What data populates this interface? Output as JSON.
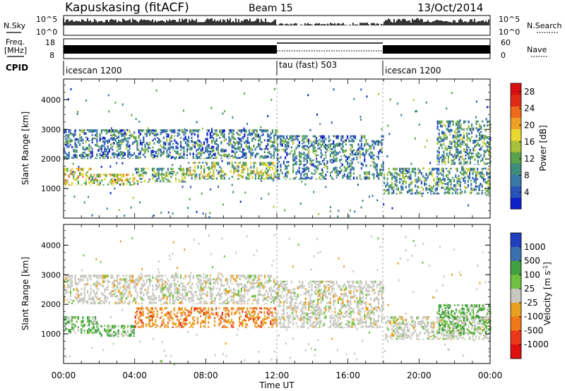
{
  "header": {
    "station": "Kapuskasing (fitACF)",
    "beam": "Beam 15",
    "date": "13/Oct/2014"
  },
  "panels": {
    "nsky": {
      "label": "N.Sky",
      "ticks": [
        "10^5",
        "10^0"
      ]
    },
    "nsearch": {
      "label": "N.Search",
      "ticks": [
        "10^5",
        "10^0"
      ]
    },
    "freq": {
      "label_line1": "Freq.",
      "label_line2": "[MHz]",
      "ticks": [
        "18",
        "8"
      ]
    },
    "nave": {
      "label": "Nave",
      "ticks": [
        "60",
        "0"
      ]
    },
    "cpid": {
      "label": "CPID",
      "segments": [
        {
          "name": "icescan 1200",
          "start": "00:00",
          "end": "12:00"
        },
        {
          "name": "tau (fast) 503",
          "start": "12:00",
          "end": "18:00"
        },
        {
          "name": "icescan 1200",
          "start": "18:00",
          "end": "24:00"
        }
      ]
    }
  },
  "chart_data": [
    {
      "type": "heatmap",
      "title": "Power",
      "ylabel": "Slant Range [km]",
      "xlabel": "Time UT",
      "y_ticks": [
        "1000",
        "2000",
        "3000",
        "4000"
      ],
      "ylim": [
        0,
        4700
      ],
      "x_ticks": [
        "00:00",
        "04:00",
        "08:00",
        "12:00",
        "16:00",
        "20:00",
        "00:00"
      ],
      "xlim_hours": [
        0,
        24
      ],
      "colorbar": {
        "label": "Power [dB]",
        "ticks": [
          "4",
          "8",
          "12",
          "16",
          "20",
          "24",
          "28"
        ],
        "range": [
          0,
          30
        ],
        "colors": [
          "#1020c8",
          "#2a55b8",
          "#3a78a8",
          "#3e8c7a",
          "#5aa24c",
          "#a8c23a",
          "#e8d830",
          "#f0a028",
          "#ee6a1c",
          "#e02a18",
          "#d81010"
        ]
      },
      "echo_bands": [
        {
          "start_h": 0,
          "end_h": 1.5,
          "range_low": 1100,
          "range_high": 1700,
          "level": 18
        },
        {
          "start_h": 1.5,
          "end_h": 4,
          "range_low": 1100,
          "range_high": 1500,
          "level": 16
        },
        {
          "start_h": 4,
          "end_h": 7,
          "range_low": 1200,
          "range_high": 1700,
          "level": 12
        },
        {
          "start_h": 7,
          "end_h": 12,
          "range_low": 1300,
          "range_high": 1900,
          "level": 14
        },
        {
          "start_h": 0,
          "end_h": 12,
          "range_low": 2000,
          "range_high": 3000,
          "level": 8
        },
        {
          "start_h": 12,
          "end_h": 18,
          "range_low": 1300,
          "range_high": 2800,
          "level": 8
        },
        {
          "start_h": 18,
          "end_h": 24,
          "range_low": 800,
          "range_high": 1700,
          "level": 10
        },
        {
          "start_h": 21,
          "end_h": 24,
          "range_low": 1800,
          "range_high": 3300,
          "level": 10
        }
      ]
    },
    {
      "type": "heatmap",
      "title": "Velocity",
      "ylabel": "Slant Range [km]",
      "xlabel": "Time UT",
      "y_ticks": [
        "1000",
        "2000",
        "3000",
        "4000"
      ],
      "ylim": [
        0,
        4700
      ],
      "x_ticks": [
        "00:00",
        "04:00",
        "08:00",
        "12:00",
        "16:00",
        "20:00",
        "00:00"
      ],
      "xlim_hours": [
        0,
        24
      ],
      "colorbar": {
        "label_main": "Velocity [m s",
        "label_exp": "-1",
        "label_close": "]",
        "ticks": [
          "1000",
          "500",
          "100",
          "25",
          "-25",
          "-100",
          "-500",
          "-1000"
        ],
        "colors": [
          "#2040c0",
          "#3a70b0",
          "#40a040",
          "#70c040",
          "#c8c8c0",
          "#e8a020",
          "#f07818",
          "#e83818",
          "#e01010"
        ]
      },
      "echo_bands": [
        {
          "start_h": 0,
          "end_h": 2,
          "range_low": 1000,
          "range_high": 1600,
          "velocity": 100
        },
        {
          "start_h": 2,
          "end_h": 4,
          "range_low": 900,
          "range_high": 1300,
          "velocity": 100
        },
        {
          "start_h": 4,
          "end_h": 12,
          "range_low": 1200,
          "range_high": 1900,
          "velocity": -100
        },
        {
          "start_h": 0,
          "end_h": 12,
          "range_low": 2000,
          "range_high": 3000,
          "velocity": 0
        },
        {
          "start_h": 12,
          "end_h": 18,
          "range_low": 1200,
          "range_high": 2800,
          "velocity": 0
        },
        {
          "start_h": 18,
          "end_h": 24,
          "range_low": 800,
          "range_high": 1600,
          "velocity": 0
        },
        {
          "start_h": 21,
          "end_h": 24,
          "range_low": 1000,
          "range_high": 2000,
          "velocity": 100
        }
      ]
    }
  ]
}
